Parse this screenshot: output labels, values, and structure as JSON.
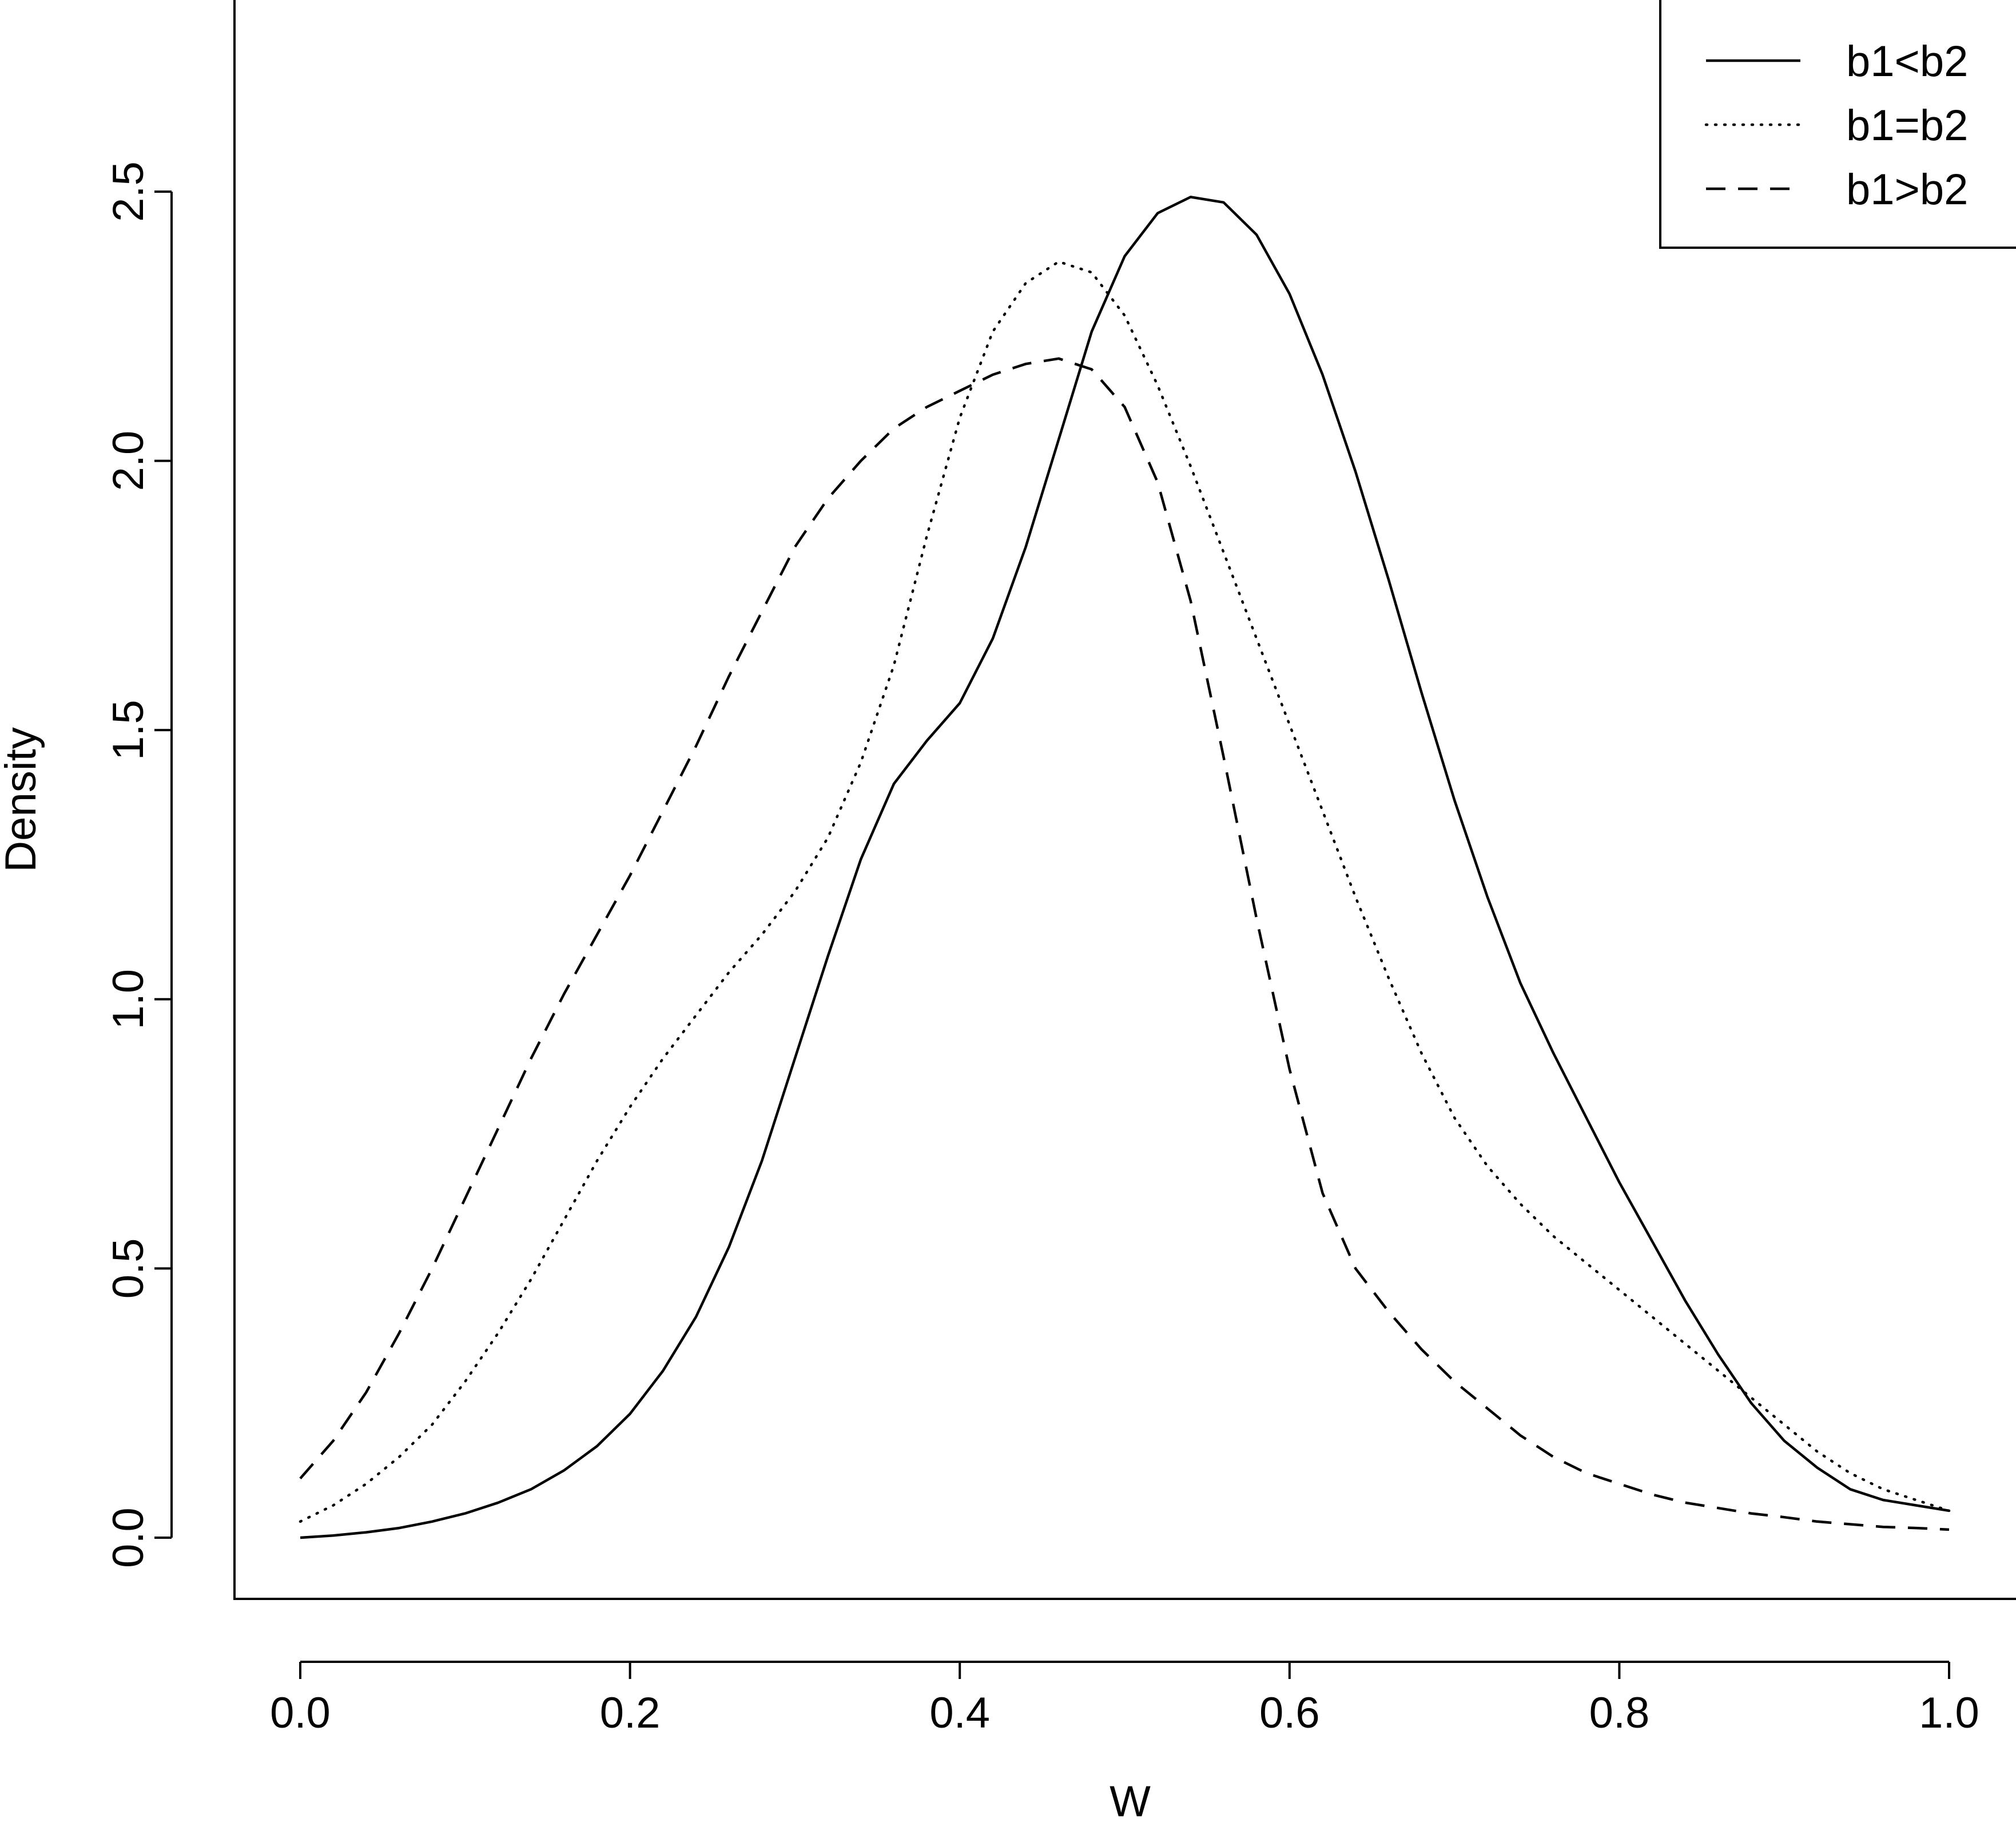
{
  "chart_data": {
    "type": "line",
    "title": "",
    "xlabel": "W",
    "ylabel": "Density",
    "xlim": [
      -0.04,
      1.04
    ],
    "ylim": [
      -0.1,
      2.85
    ],
    "xticks": [
      0.0,
      0.2,
      0.4,
      0.6,
      0.8,
      1.0
    ],
    "xtick_labels": [
      "0.0",
      "0.2",
      "0.4",
      "0.6",
      "0.8",
      "1.0"
    ],
    "yticks": [
      0.0,
      0.5,
      1.0,
      1.5,
      2.0,
      2.5
    ],
    "ytick_labels": [
      "0.0",
      "0.5",
      "1.0",
      "1.5",
      "2.0",
      "2.5"
    ],
    "grid": false,
    "legend_position": "top-right",
    "series": [
      {
        "name": "b1<b2",
        "line_style": "solid",
        "color": "#000000",
        "x": [
          0.0,
          0.02,
          0.04,
          0.06,
          0.08,
          0.1,
          0.12,
          0.14,
          0.16,
          0.18,
          0.2,
          0.22,
          0.24,
          0.26,
          0.28,
          0.3,
          0.32,
          0.34,
          0.36,
          0.38,
          0.4,
          0.42,
          0.44,
          0.46,
          0.48,
          0.5,
          0.52,
          0.54,
          0.56,
          0.58,
          0.6,
          0.62,
          0.64,
          0.66,
          0.68,
          0.7,
          0.72,
          0.74,
          0.76,
          0.78,
          0.8,
          0.82,
          0.84,
          0.86,
          0.88,
          0.9,
          0.92,
          0.94,
          0.96,
          0.98,
          1.0
        ],
        "y": [
          0.0,
          0.004,
          0.01,
          0.018,
          0.03,
          0.045,
          0.065,
          0.09,
          0.125,
          0.17,
          0.23,
          0.31,
          0.41,
          0.54,
          0.7,
          0.89,
          1.08,
          1.26,
          1.4,
          1.48,
          1.55,
          1.67,
          1.84,
          2.04,
          2.24,
          2.38,
          2.46,
          2.49,
          2.48,
          2.42,
          2.31,
          2.16,
          1.98,
          1.78,
          1.57,
          1.37,
          1.19,
          1.03,
          0.9,
          0.78,
          0.66,
          0.55,
          0.44,
          0.34,
          0.25,
          0.18,
          0.13,
          0.09,
          0.07,
          0.06,
          0.05
        ]
      },
      {
        "name": "b1=b2",
        "line_style": "dotted",
        "color": "#000000",
        "x": [
          0.0,
          0.02,
          0.04,
          0.06,
          0.08,
          0.1,
          0.12,
          0.14,
          0.16,
          0.18,
          0.2,
          0.22,
          0.24,
          0.26,
          0.28,
          0.3,
          0.32,
          0.34,
          0.36,
          0.38,
          0.4,
          0.42,
          0.44,
          0.46,
          0.48,
          0.5,
          0.52,
          0.54,
          0.56,
          0.58,
          0.6,
          0.62,
          0.64,
          0.66,
          0.68,
          0.7,
          0.72,
          0.74,
          0.76,
          0.78,
          0.8,
          0.82,
          0.84,
          0.86,
          0.88,
          0.9,
          0.92,
          0.94,
          0.96,
          0.98,
          1.0
        ],
        "y": [
          0.03,
          0.06,
          0.1,
          0.15,
          0.21,
          0.29,
          0.38,
          0.48,
          0.59,
          0.7,
          0.8,
          0.89,
          0.97,
          1.05,
          1.12,
          1.2,
          1.3,
          1.44,
          1.62,
          1.86,
          2.08,
          2.24,
          2.33,
          2.37,
          2.35,
          2.27,
          2.14,
          1.99,
          1.83,
          1.67,
          1.51,
          1.35,
          1.19,
          1.04,
          0.9,
          0.78,
          0.69,
          0.62,
          0.56,
          0.51,
          0.46,
          0.41,
          0.36,
          0.31,
          0.26,
          0.21,
          0.16,
          0.12,
          0.09,
          0.07,
          0.05
        ]
      },
      {
        "name": "b1>b2",
        "line_style": "dashed",
        "color": "#000000",
        "x": [
          0.0,
          0.02,
          0.04,
          0.06,
          0.08,
          0.1,
          0.12,
          0.14,
          0.16,
          0.18,
          0.2,
          0.22,
          0.24,
          0.26,
          0.28,
          0.3,
          0.32,
          0.34,
          0.36,
          0.38,
          0.4,
          0.42,
          0.44,
          0.46,
          0.48,
          0.5,
          0.52,
          0.54,
          0.56,
          0.58,
          0.6,
          0.62,
          0.64,
          0.66,
          0.68,
          0.7,
          0.72,
          0.74,
          0.76,
          0.78,
          0.8,
          0.82,
          0.84,
          0.86,
          0.88,
          0.9,
          0.92,
          0.94,
          0.96,
          0.98,
          1.0
        ],
        "y": [
          0.11,
          0.18,
          0.27,
          0.38,
          0.5,
          0.63,
          0.76,
          0.89,
          1.01,
          1.12,
          1.23,
          1.35,
          1.47,
          1.6,
          1.72,
          1.84,
          1.93,
          2.0,
          2.06,
          2.1,
          2.13,
          2.16,
          2.18,
          2.19,
          2.17,
          2.1,
          1.96,
          1.74,
          1.45,
          1.15,
          0.87,
          0.64,
          0.5,
          0.42,
          0.35,
          0.29,
          0.24,
          0.19,
          0.15,
          0.12,
          0.1,
          0.08,
          0.065,
          0.055,
          0.045,
          0.038,
          0.03,
          0.025,
          0.02,
          0.018,
          0.015
        ]
      }
    ]
  }
}
